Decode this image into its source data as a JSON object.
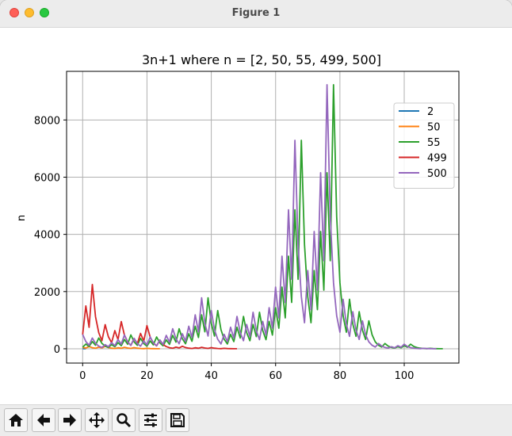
{
  "window": {
    "title": "Figure 1"
  },
  "toolbar": {
    "buttons": [
      {
        "name": "home-icon"
      },
      {
        "name": "back-arrow-icon"
      },
      {
        "name": "forward-arrow-icon"
      },
      {
        "name": "pan-icon"
      },
      {
        "name": "zoom-icon"
      },
      {
        "name": "configure-subplots-icon"
      },
      {
        "name": "save-icon"
      }
    ]
  },
  "chart_data": {
    "type": "line",
    "title": "3n+1 where n = [2, 50, 55, 499, 500]",
    "xlabel": "",
    "ylabel": "n",
    "xlim": [
      -5,
      117
    ],
    "ylim": [
      -500,
      9700
    ],
    "xticks": [
      0,
      20,
      40,
      60,
      80,
      100
    ],
    "yticks": [
      0,
      2000,
      4000,
      6000,
      8000
    ],
    "grid": true,
    "legend_position": "top-right",
    "series": [
      {
        "name": "2",
        "color": "#1f77b4",
        "values": [
          2,
          1
        ]
      },
      {
        "name": "50",
        "color": "#ff7f0e",
        "values": [
          50,
          25,
          76,
          38,
          19,
          58,
          29,
          88,
          44,
          22,
          11,
          34,
          17,
          52,
          26,
          13,
          40,
          20,
          10,
          5,
          16,
          8,
          4,
          2,
          1
        ]
      },
      {
        "name": "55",
        "color": "#2ca02c",
        "values": [
          55,
          166,
          83,
          250,
          125,
          376,
          188,
          94,
          47,
          142,
          71,
          214,
          107,
          322,
          161,
          484,
          242,
          121,
          364,
          182,
          91,
          274,
          137,
          412,
          206,
          103,
          310,
          155,
          466,
          233,
          700,
          350,
          175,
          526,
          263,
          790,
          395,
          1186,
          593,
          1780,
          890,
          445,
          1336,
          668,
          334,
          167,
          502,
          251,
          754,
          377,
          1132,
          566,
          283,
          850,
          425,
          1276,
          638,
          319,
          958,
          479,
          1438,
          719,
          2158,
          1079,
          3238,
          1619,
          4858,
          2429,
          7288,
          3644,
          1822,
          911,
          2734,
          1367,
          4102,
          2051,
          6154,
          3077,
          9232,
          4616,
          2308,
          1154,
          577,
          1732,
          866,
          433,
          1300,
          650,
          325,
          976,
          488,
          244,
          122,
          61,
          184,
          92,
          46,
          23,
          70,
          35,
          106,
          53,
          160,
          80,
          40,
          20,
          10,
          5,
          16,
          8,
          4,
          2,
          1
        ]
      },
      {
        "name": "499",
        "color": "#d62728",
        "values": [
          499,
          1498,
          749,
          2248,
          1124,
          562,
          281,
          844,
          422,
          211,
          634,
          317,
          952,
          476,
          238,
          119,
          358,
          179,
          538,
          269,
          808,
          404,
          202,
          101,
          304,
          152,
          76,
          38,
          19,
          58,
          29,
          88,
          44,
          22,
          11,
          34,
          17,
          52,
          26,
          13,
          40,
          20,
          10,
          5,
          16,
          8,
          4,
          2,
          1
        ]
      },
      {
        "name": "500",
        "color": "#9467bd",
        "values": [
          500,
          250,
          125,
          376,
          188,
          94,
          47,
          142,
          71,
          214,
          107,
          322,
          161,
          484,
          242,
          121,
          364,
          182,
          91,
          274,
          137,
          412,
          206,
          103,
          310,
          155,
          466,
          233,
          700,
          350,
          175,
          526,
          263,
          790,
          395,
          1186,
          593,
          1780,
          890,
          445,
          1336,
          668,
          334,
          167,
          502,
          251,
          754,
          377,
          1132,
          566,
          283,
          850,
          425,
          1276,
          638,
          319,
          958,
          479,
          1438,
          719,
          2158,
          1079,
          3238,
          1619,
          4858,
          2429,
          7288,
          3644,
          1822,
          911,
          2734,
          1367,
          4102,
          2051,
          6154,
          3077,
          9232,
          4616,
          2308,
          1154,
          577,
          1732,
          866,
          433,
          1300,
          650,
          325,
          976,
          488,
          244,
          122,
          61,
          184,
          92,
          46,
          23,
          70,
          35,
          106,
          53,
          160,
          80,
          40,
          20,
          10,
          5,
          16,
          8,
          4,
          2,
          1
        ]
      }
    ]
  }
}
